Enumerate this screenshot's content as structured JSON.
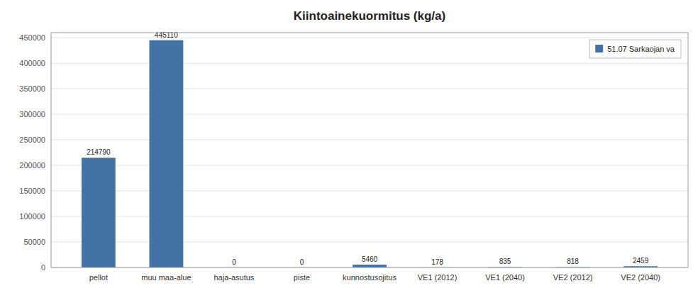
{
  "chart_data": {
    "type": "bar",
    "title": "Kiintoainekuormitus (kg/a)",
    "categories": [
      "pellot",
      "muu maa-alue",
      "haja-asutus",
      "piste",
      "kunnostusojitus",
      "VE1 (2012)",
      "VE1 (2040)",
      "VE2 (2012)",
      "VE2 (2040)"
    ],
    "series": [
      {
        "name": "51.07 Sarkaojan va",
        "color": "#4472a4",
        "values": [
          214790,
          445110,
          0,
          0,
          5460,
          178,
          835,
          818,
          2459
        ]
      }
    ],
    "ylim": [
      0,
      460000
    ],
    "yticks": [
      0,
      50000,
      100000,
      150000,
      200000,
      250000,
      300000,
      350000,
      400000,
      450000
    ],
    "grid": true,
    "legend": "upper right",
    "data_labels": true
  }
}
